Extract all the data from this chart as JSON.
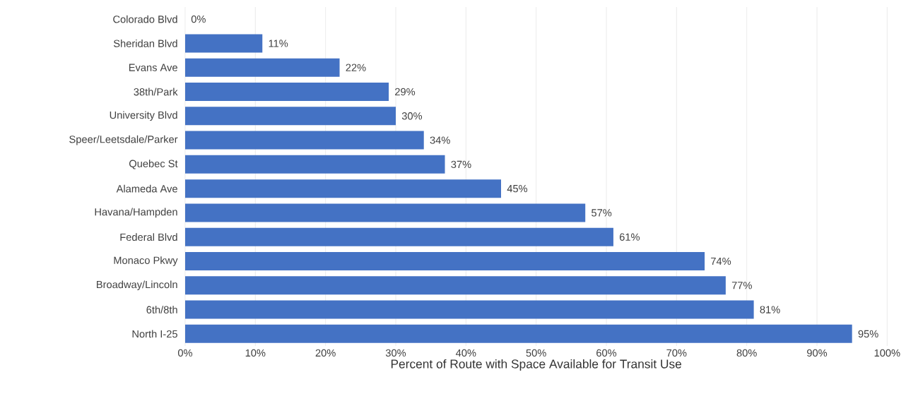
{
  "chart_data": {
    "type": "bar",
    "orientation": "horizontal",
    "xlabel": "Percent of Route with Space Available for Transit Use",
    "categories": [
      "Colorado Blvd",
      "Sheridan Blvd",
      "Evans Ave",
      "38th/Park",
      "University Blvd",
      "Speer/Leetsdale/Parker",
      "Quebec St",
      "Alameda Ave",
      "Havana/Hampden",
      "Federal Blvd",
      "Monaco Pkwy",
      "Broadway/Lincoln",
      "6th/8th",
      "North I-25"
    ],
    "values": [
      0,
      11,
      22,
      29,
      30,
      34,
      37,
      45,
      57,
      61,
      74,
      77,
      81,
      95
    ],
    "value_labels": [
      "0%",
      "11%",
      "22%",
      "29%",
      "30%",
      "34%",
      "37%",
      "45%",
      "57%",
      "61%",
      "74%",
      "77%",
      "81%",
      "95%"
    ],
    "color": "#4472c4",
    "xlim": [
      0,
      100
    ],
    "xticks": [
      {
        "value": 0,
        "label": "0%"
      },
      {
        "value": 10,
        "label": "10%"
      },
      {
        "value": 20,
        "label": "20%"
      },
      {
        "value": 30,
        "label": "30%"
      },
      {
        "value": 40,
        "label": "40%"
      },
      {
        "value": 50,
        "label": "50%"
      },
      {
        "value": 60,
        "label": "60%"
      },
      {
        "value": 70,
        "label": "70%"
      },
      {
        "value": 80,
        "label": "80%"
      },
      {
        "value": 90,
        "label": "90%"
      },
      {
        "value": 100,
        "label": "100%"
      }
    ],
    "grid": "x"
  }
}
